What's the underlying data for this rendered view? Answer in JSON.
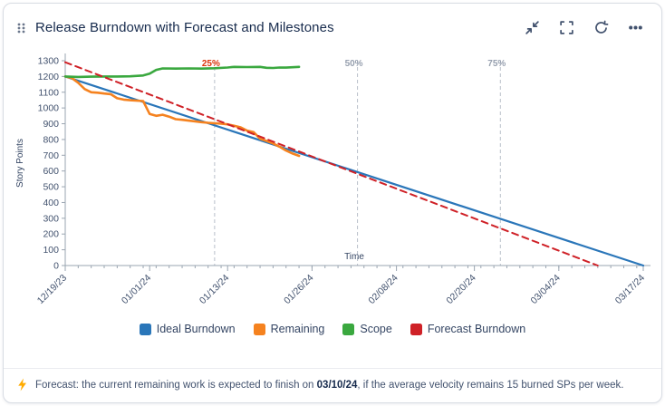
{
  "header": {
    "title": "Release Burndown with Forecast and Milestones"
  },
  "chart_data": {
    "type": "line",
    "title": "Release Burndown with Forecast and Milestones",
    "xlabel": "Time",
    "ylabel": "Story Points",
    "ylim": [
      0,
      1300
    ],
    "ytick_step": 100,
    "x_unit": "days since 12/19/23",
    "grid": false,
    "legend_position": "bottom",
    "xticks": [
      {
        "day": 0,
        "label": "12/19/23"
      },
      {
        "day": 13,
        "label": "01/01/24"
      },
      {
        "day": 25,
        "label": "01/13/24"
      },
      {
        "day": 38,
        "label": "01/26/24"
      },
      {
        "day": 51,
        "label": "02/08/24"
      },
      {
        "day": 63,
        "label": "02/20/24"
      },
      {
        "day": 76,
        "label": "03/04/24"
      },
      {
        "day": 89,
        "label": "03/17/24"
      }
    ],
    "milestones": [
      {
        "label": "25%",
        "day": 23,
        "label_color": "#de350b"
      },
      {
        "label": "50%",
        "day": 45,
        "label_color": "#97a0af"
      },
      {
        "label": "75%",
        "day": 67,
        "label_color": "#97a0af"
      }
    ],
    "series": [
      {
        "name": "Ideal Burndown",
        "color": "#2a76b9",
        "style": "solid",
        "width": 2.2,
        "points": [
          [
            0,
            1200
          ],
          [
            89,
            0
          ]
        ]
      },
      {
        "name": "Remaining",
        "color": "#f5821f",
        "style": "solid",
        "width": 2.6,
        "points": [
          [
            0,
            1200
          ],
          [
            1,
            1190
          ],
          [
            2,
            1160
          ],
          [
            3,
            1120
          ],
          [
            4,
            1100
          ],
          [
            5,
            1097
          ],
          [
            6,
            1092
          ],
          [
            7,
            1088
          ],
          [
            8,
            1062
          ],
          [
            9,
            1053
          ],
          [
            10,
            1049
          ],
          [
            12,
            1044
          ],
          [
            13,
            962
          ],
          [
            14,
            950
          ],
          [
            15,
            957
          ],
          [
            16,
            945
          ],
          [
            17,
            929
          ],
          [
            18,
            925
          ],
          [
            19,
            920
          ],
          [
            20,
            915
          ],
          [
            21,
            910
          ],
          [
            22,
            906
          ],
          [
            24,
            900
          ],
          [
            25,
            896
          ],
          [
            26,
            887
          ],
          [
            27,
            877
          ],
          [
            28,
            856
          ],
          [
            29,
            847
          ],
          [
            30,
            805
          ],
          [
            31,
            791
          ],
          [
            32,
            775
          ],
          [
            33,
            754
          ],
          [
            34,
            730
          ],
          [
            35,
            711
          ],
          [
            36,
            696
          ]
        ]
      },
      {
        "name": "Scope",
        "color": "#3aa83f",
        "style": "solid",
        "width": 2.6,
        "points": [
          [
            0,
            1200
          ],
          [
            2,
            1197
          ],
          [
            4,
            1199
          ],
          [
            6,
            1200
          ],
          [
            8,
            1200
          ],
          [
            10,
            1201
          ],
          [
            12,
            1206
          ],
          [
            13,
            1218
          ],
          [
            14,
            1242
          ],
          [
            15,
            1251
          ],
          [
            17,
            1250
          ],
          [
            19,
            1251
          ],
          [
            21,
            1250
          ],
          [
            23,
            1252
          ],
          [
            25,
            1257
          ],
          [
            26,
            1261
          ],
          [
            28,
            1260
          ],
          [
            30,
            1261
          ],
          [
            31,
            1255
          ],
          [
            32,
            1254
          ],
          [
            33,
            1257
          ],
          [
            34,
            1256
          ],
          [
            36,
            1261
          ]
        ]
      },
      {
        "name": "Forecast Burndown",
        "color": "#cf2127",
        "style": "dashed",
        "width": 2,
        "points": [
          [
            0,
            1290
          ],
          [
            82,
            0
          ]
        ]
      }
    ]
  },
  "footer": {
    "text_before": "Forecast: the current remaining work is expected to finish on ",
    "date": "03/10/24",
    "text_after": ", if the average velocity remains 15 burned SPs per week."
  }
}
